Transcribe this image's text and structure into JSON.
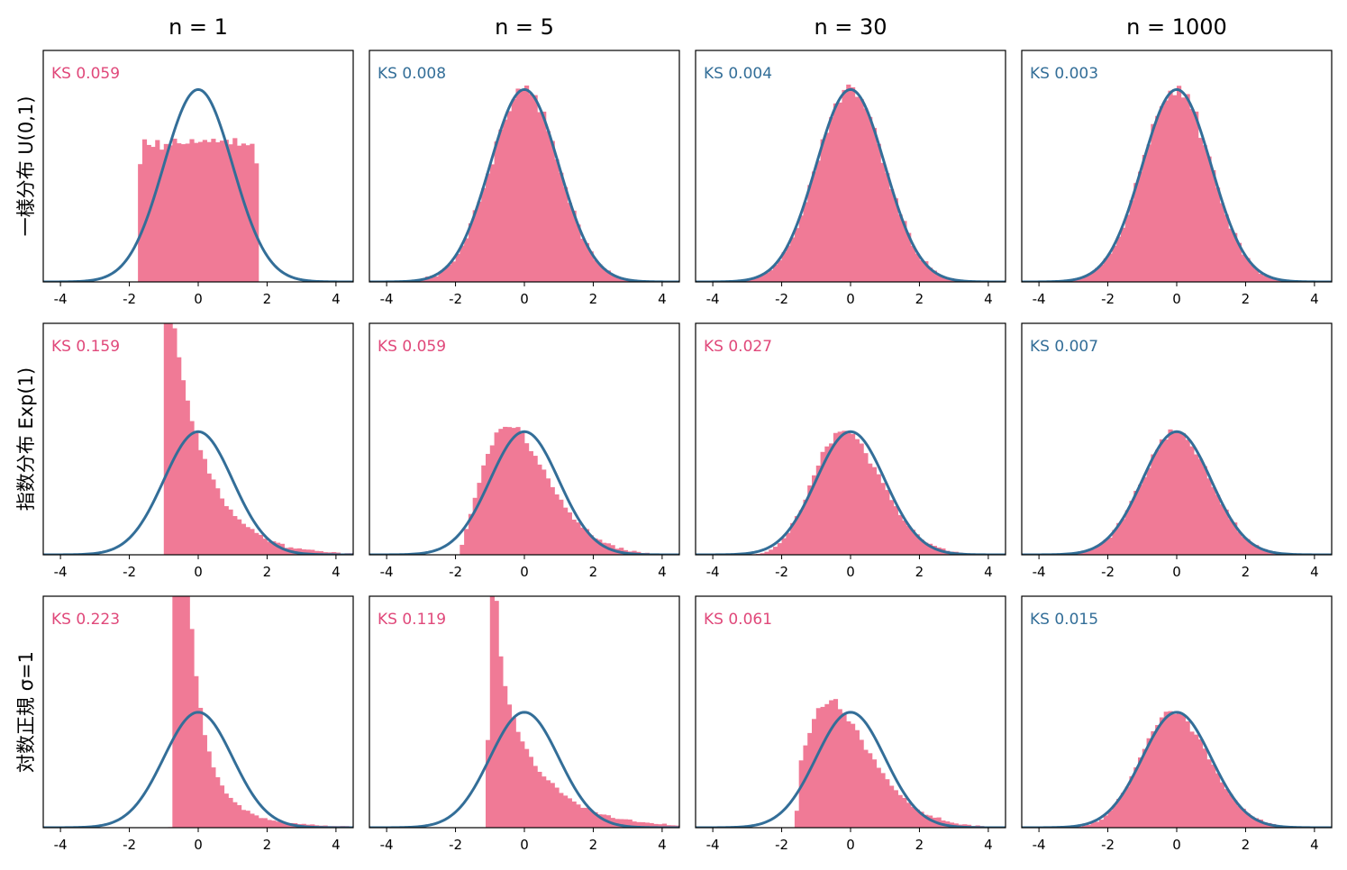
{
  "colors": {
    "hist_fill": "#f07a96",
    "curve": "#336e98",
    "ks_pass": "#336e98",
    "ks_fail": "#e0487a"
  },
  "columns": [
    "n = 1",
    "n = 5",
    "n = 30",
    "n = 1000"
  ],
  "rows": [
    "一様分布 U(0,1)",
    "指数分布 Exp(1)",
    "対数正規 σ=1"
  ],
  "x_ticks": [
    "-4",
    "-2",
    "0",
    "2",
    "4"
  ],
  "chart_data": [
    {
      "type": "bar",
      "row": 0,
      "col": 0,
      "ks_label": "KS 0.059",
      "ks_pass": false,
      "dist": "uniform",
      "n": 1,
      "xlim": [
        -4.5,
        4.5
      ],
      "ylim": [
        0,
        0.48
      ],
      "x_ticks": [
        -4,
        -2,
        0,
        2,
        4
      ],
      "curve": "standard normal pdf"
    },
    {
      "type": "bar",
      "row": 0,
      "col": 1,
      "ks_label": "KS 0.008",
      "ks_pass": true,
      "dist": "uniform",
      "n": 5,
      "xlim": [
        -4.5,
        4.5
      ],
      "ylim": [
        0,
        0.48
      ],
      "x_ticks": [
        -4,
        -2,
        0,
        2,
        4
      ],
      "curve": "standard normal pdf"
    },
    {
      "type": "bar",
      "row": 0,
      "col": 2,
      "ks_label": "KS 0.004",
      "ks_pass": true,
      "dist": "uniform",
      "n": 30,
      "xlim": [
        -4.5,
        4.5
      ],
      "ylim": [
        0,
        0.48
      ],
      "x_ticks": [
        -4,
        -2,
        0,
        2,
        4
      ],
      "curve": "standard normal pdf"
    },
    {
      "type": "bar",
      "row": 0,
      "col": 3,
      "ks_label": "KS 0.003",
      "ks_pass": true,
      "dist": "uniform",
      "n": 1000,
      "xlim": [
        -4.5,
        4.5
      ],
      "ylim": [
        0,
        0.48
      ],
      "x_ticks": [
        -4,
        -2,
        0,
        2,
        4
      ],
      "curve": "standard normal pdf"
    },
    {
      "type": "bar",
      "row": 1,
      "col": 0,
      "ks_label": "KS 0.159",
      "ks_pass": false,
      "dist": "exponential",
      "n": 1,
      "xlim": [
        -4.5,
        4.5
      ],
      "ylim": [
        0,
        0.75
      ],
      "x_ticks": [
        -4,
        -2,
        0,
        2,
        4
      ],
      "curve": "standard normal pdf"
    },
    {
      "type": "bar",
      "row": 1,
      "col": 1,
      "ks_label": "KS 0.059",
      "ks_pass": false,
      "dist": "exponential",
      "n": 5,
      "xlim": [
        -4.5,
        4.5
      ],
      "ylim": [
        0,
        0.75
      ],
      "x_ticks": [
        -4,
        -2,
        0,
        2,
        4
      ],
      "curve": "standard normal pdf"
    },
    {
      "type": "bar",
      "row": 1,
      "col": 2,
      "ks_label": "KS 0.027",
      "ks_pass": false,
      "dist": "exponential",
      "n": 30,
      "xlim": [
        -4.5,
        4.5
      ],
      "ylim": [
        0,
        0.75
      ],
      "x_ticks": [
        -4,
        -2,
        0,
        2,
        4
      ],
      "curve": "standard normal pdf"
    },
    {
      "type": "bar",
      "row": 1,
      "col": 3,
      "ks_label": "KS 0.007",
      "ks_pass": true,
      "dist": "exponential",
      "n": 1000,
      "xlim": [
        -4.5,
        4.5
      ],
      "ylim": [
        0,
        0.75
      ],
      "x_ticks": [
        -4,
        -2,
        0,
        2,
        4
      ],
      "curve": "standard normal pdf"
    },
    {
      "type": "bar",
      "row": 2,
      "col": 0,
      "ks_label": "KS 0.223",
      "ks_pass": false,
      "dist": "lognormal",
      "n": 1,
      "xlim": [
        -4.5,
        4.5
      ],
      "ylim": [
        0,
        0.8
      ],
      "x_ticks": [
        -4,
        -2,
        0,
        2,
        4
      ],
      "curve": "standard normal pdf"
    },
    {
      "type": "bar",
      "row": 2,
      "col": 1,
      "ks_label": "KS 0.119",
      "ks_pass": false,
      "dist": "lognormal",
      "n": 5,
      "xlim": [
        -4.5,
        4.5
      ],
      "ylim": [
        0,
        0.8
      ],
      "x_ticks": [
        -4,
        -2,
        0,
        2,
        4
      ],
      "curve": "standard normal pdf"
    },
    {
      "type": "bar",
      "row": 2,
      "col": 2,
      "ks_label": "KS 0.061",
      "ks_pass": false,
      "dist": "lognormal",
      "n": 30,
      "xlim": [
        -4.5,
        4.5
      ],
      "ylim": [
        0,
        0.8
      ],
      "x_ticks": [
        -4,
        -2,
        0,
        2,
        4
      ],
      "curve": "standard normal pdf"
    },
    {
      "type": "bar",
      "row": 2,
      "col": 3,
      "ks_label": "KS 0.015",
      "ks_pass": true,
      "dist": "lognormal",
      "n": 1000,
      "xlim": [
        -4.5,
        4.5
      ],
      "ylim": [
        0,
        0.8
      ],
      "x_ticks": [
        -4,
        -2,
        0,
        2,
        4
      ],
      "curve": "standard normal pdf"
    }
  ]
}
